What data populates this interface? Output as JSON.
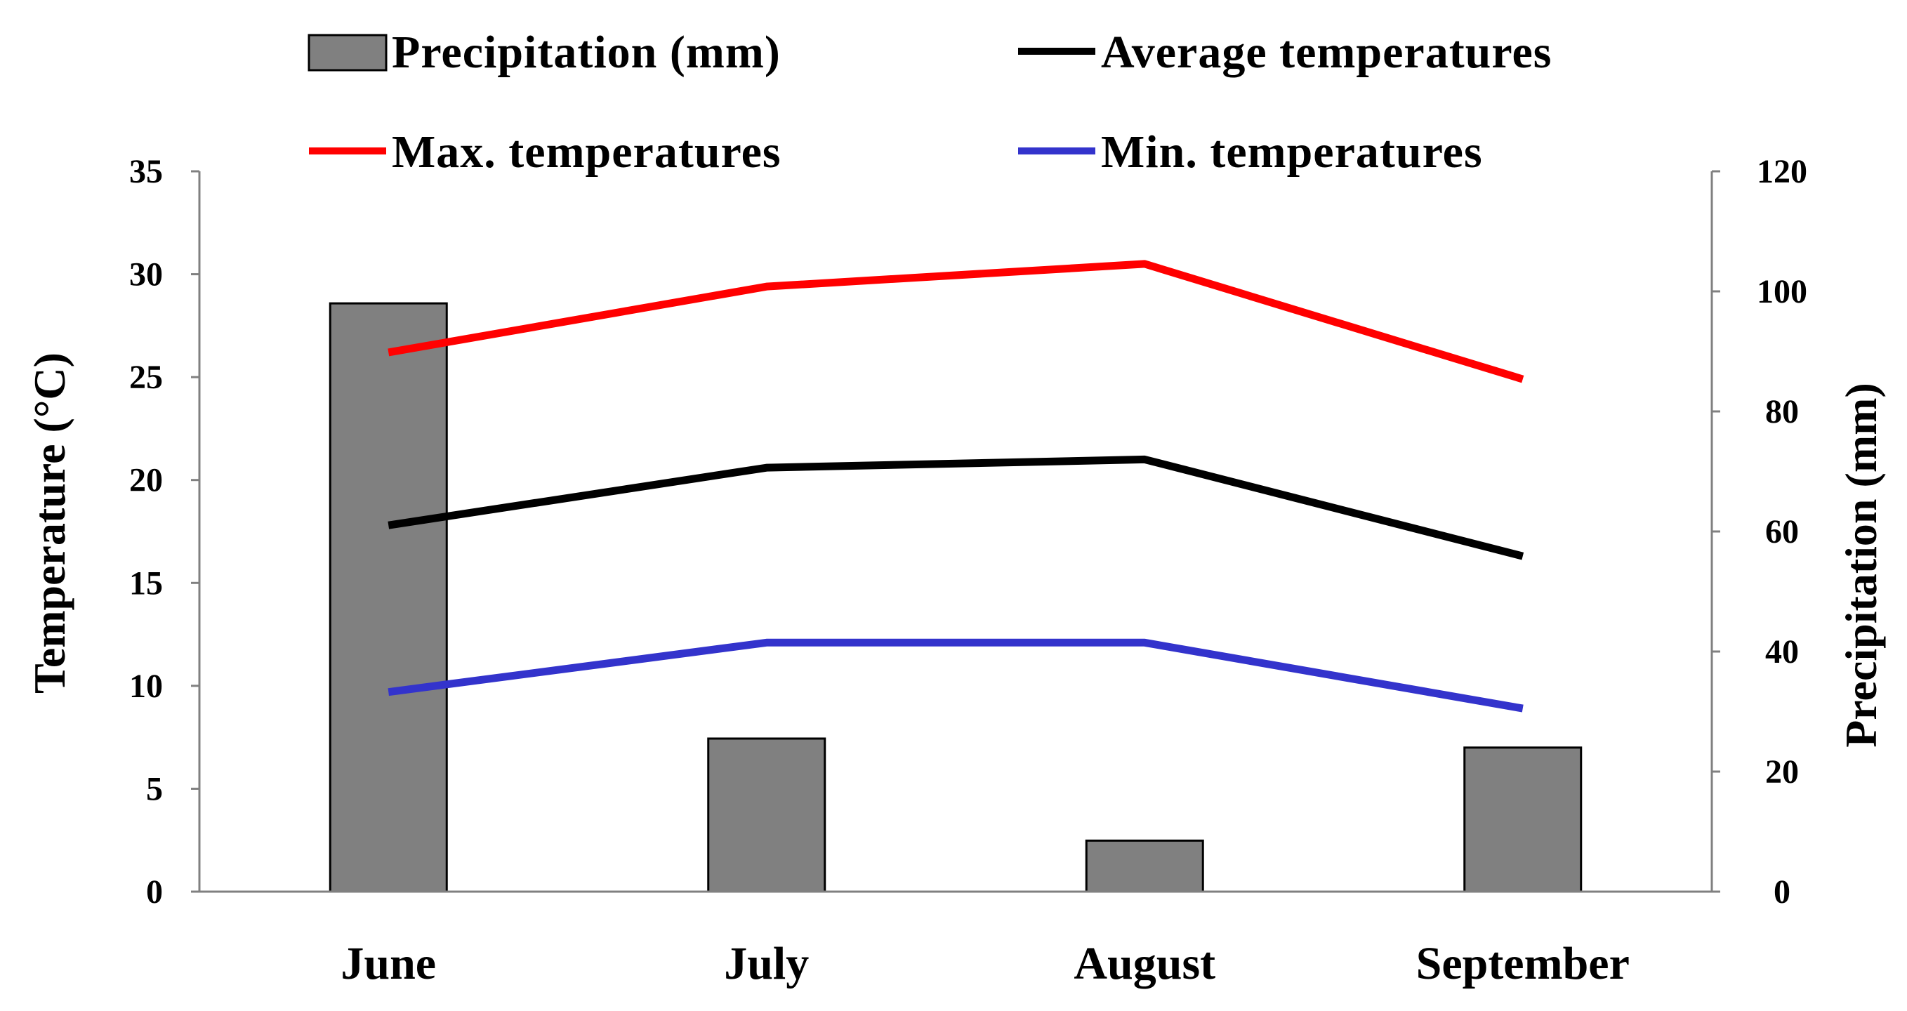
{
  "chart_data": {
    "type": "bar+line",
    "categories": [
      "June",
      "July",
      "August",
      "September"
    ],
    "bar_series": {
      "name": "Precipitation (mm)",
      "axis": "right",
      "values": [
        98,
        25.5,
        8.5,
        24
      ],
      "color": "#808080"
    },
    "line_series": [
      {
        "name": "Average temperatures",
        "axis": "left",
        "values": [
          17.8,
          20.6,
          21.0,
          16.3
        ],
        "color": "#000000"
      },
      {
        "name": "Max. temperatures",
        "axis": "left",
        "values": [
          26.2,
          29.4,
          30.5,
          24.9
        ],
        "color": "#ff0000"
      },
      {
        "name": "Min. temperatures",
        "axis": "left",
        "values": [
          9.7,
          12.1,
          12.1,
          8.9
        ],
        "color": "#3333cc"
      }
    ],
    "left_axis": {
      "label": "Temperature  (°C)",
      "ylim": [
        0,
        35
      ],
      "ticks": [
        "0",
        "5",
        "10",
        "15",
        "20",
        "25",
        "30",
        "35"
      ]
    },
    "right_axis": {
      "label": "Precipitation (mm)",
      "ylim": [
        0,
        120
      ],
      "ticks": [
        "0",
        "20",
        "40",
        "60",
        "80",
        "100",
        "120"
      ]
    },
    "legend": {
      "position": "top",
      "items": [
        "Precipitation (mm)",
        "Average temperatures",
        "Max. temperatures",
        "Min. temperatures"
      ]
    },
    "grid": false
  }
}
